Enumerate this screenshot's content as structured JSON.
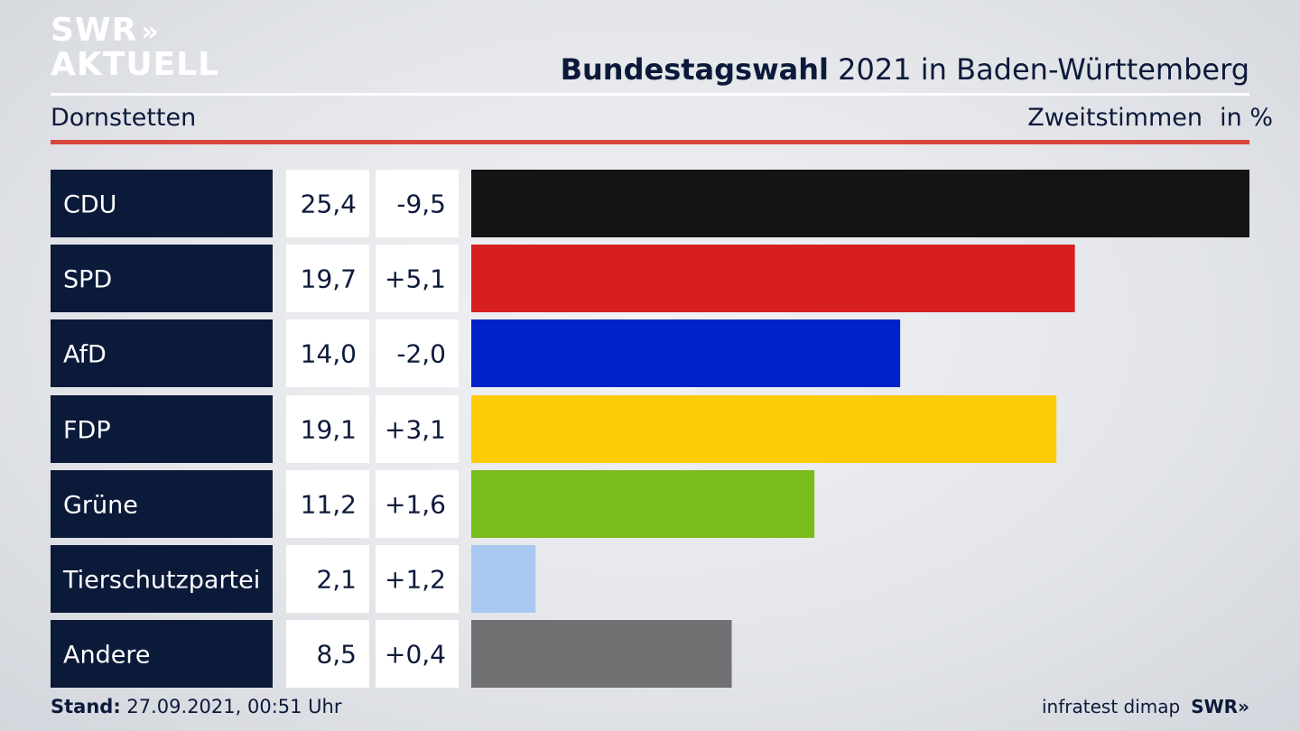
{
  "brand": {
    "line1": "SWR",
    "line2": "AKTUELL",
    "arrows": "»"
  },
  "header": {
    "title_bold": "Bundestagswahl",
    "title_rest": " 2021 in Baden-Württemberg",
    "place": "Dornstetten",
    "metric": "Zweitstimmen",
    "unit": "in %"
  },
  "footer": {
    "stand_label": "Stand:",
    "stand_value": " 27.09.2021, 00:51 Uhr",
    "source": "infratest dimap",
    "logo": "SWR»"
  },
  "chart_data": {
    "type": "bar",
    "orientation": "horizontal",
    "categories": [
      "CDU",
      "SPD",
      "AfD",
      "FDP",
      "Grüne",
      "Tierschutzpartei",
      "Andere"
    ],
    "values": [
      25.4,
      19.7,
      14.0,
      19.1,
      11.2,
      2.1,
      8.5
    ],
    "value_labels": [
      "25,4",
      "19,7",
      "14,0",
      "19,1",
      "11,2",
      "2,1",
      "8,5"
    ],
    "change_labels": [
      "-9,5",
      "+5,1",
      "-2,0",
      "+3,1",
      "+1,6",
      "+1,2",
      "+0,4"
    ],
    "colors": [
      "#141414",
      "#d81f1f",
      "#0022c9",
      "#fdcb07",
      "#79bd1c",
      "#a9c8f0",
      "#707173"
    ],
    "xlim": [
      0,
      25.4
    ],
    "title": "",
    "xlabel": "",
    "ylabel": ""
  }
}
